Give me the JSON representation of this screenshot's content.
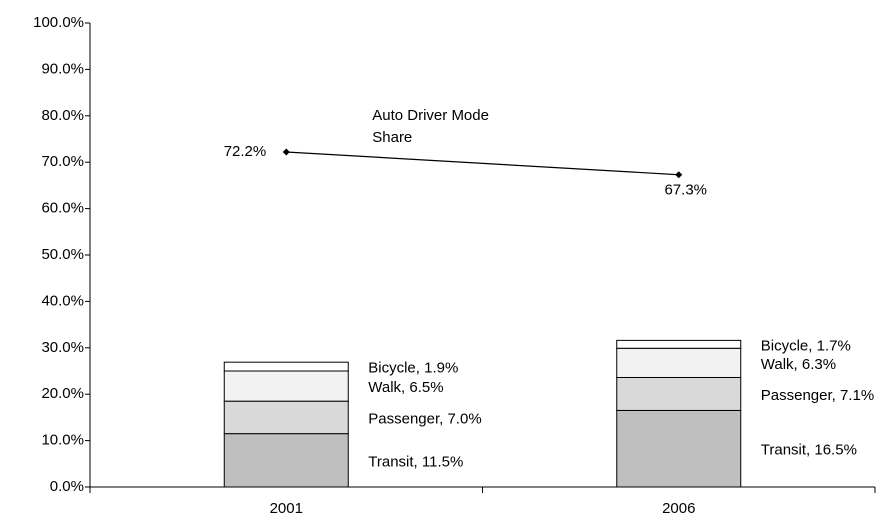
{
  "chart_data": {
    "type": "bar",
    "categories": [
      "2001",
      "2006"
    ],
    "ylim": [
      0,
      100
    ],
    "yticks": [
      {
        "value": 0,
        "label": "0.0%"
      },
      {
        "value": 10,
        "label": "10.0%"
      },
      {
        "value": 20,
        "label": "20.0%"
      },
      {
        "value": 30,
        "label": "30.0%"
      },
      {
        "value": 40,
        "label": "40.0%"
      },
      {
        "value": 50,
        "label": "50.0%"
      },
      {
        "value": 60,
        "label": "60.0%"
      },
      {
        "value": 70,
        "label": "70.0%"
      },
      {
        "value": 80,
        "label": "80.0%"
      },
      {
        "value": 90,
        "label": "90.0%"
      },
      {
        "value": 100,
        "label": "100.0%"
      }
    ],
    "series": [
      {
        "name": "Transit",
        "color": "#bfbfbf",
        "values": [
          11.5,
          16.5
        ],
        "value_labels": [
          "Transit, 11.5%",
          "Transit, 16.5%"
        ]
      },
      {
        "name": "Passenger",
        "color": "#d9d9d9",
        "values": [
          7.0,
          7.1
        ],
        "value_labels": [
          "Passenger, 7.0%",
          "Passenger, 7.1%"
        ]
      },
      {
        "name": "Walk",
        "color": "#f2f2f2",
        "values": [
          6.5,
          6.3
        ],
        "value_labels": [
          "Walk, 6.5%",
          "Walk, 6.3%"
        ]
      },
      {
        "name": "Bicycle",
        "color": "#ffffff",
        "values": [
          1.9,
          1.7
        ],
        "value_labels": [
          "Bicycle, 1.9%",
          "Bicycle, 1.7%"
        ]
      },
      {
        "name": "Auto Driver Mode Share",
        "type": "line",
        "color": "#000000",
        "values": [
          72.2,
          67.3
        ],
        "value_labels": [
          "72.2%",
          "67.3%"
        ]
      }
    ]
  }
}
